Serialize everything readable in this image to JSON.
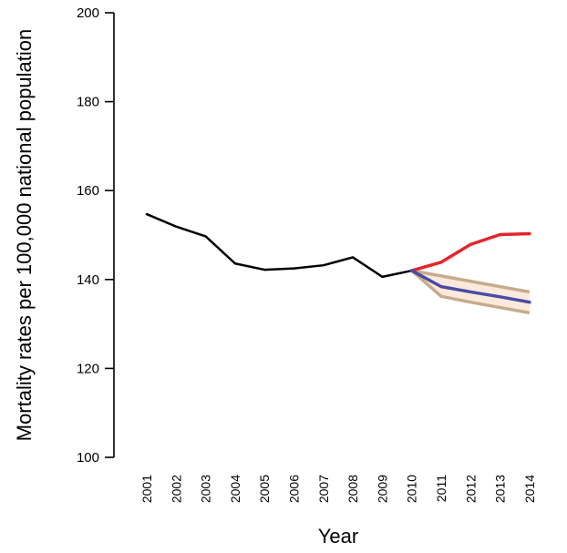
{
  "chart_data": {
    "type": "line",
    "title": "",
    "xlabel": "Year",
    "ylabel": "Mortality rates per 100,000 national population",
    "ylim": [
      100,
      200
    ],
    "yticks": [
      100,
      120,
      140,
      160,
      180,
      200
    ],
    "x": [
      "2001",
      "2002",
      "2003",
      "2004",
      "2005",
      "2006",
      "2007",
      "2008",
      "2009",
      "2010",
      "2011",
      "2012",
      "2013",
      "2014"
    ],
    "grid": false,
    "legend": "none",
    "band": {
      "x": [
        "2010",
        "2011",
        "2012",
        "2013",
        "2014"
      ],
      "upper": [
        142.0,
        140.8,
        139.6,
        138.4,
        137.2
      ],
      "lower": [
        142.0,
        136.2,
        134.9,
        133.7,
        132.5
      ],
      "fill_color": "#fbeadb",
      "edge_color": "#c8ab8c"
    },
    "series": [
      {
        "color": "#000000",
        "x": [
          "2001",
          "2002",
          "2003",
          "2004",
          "2005",
          "2006",
          "2007",
          "2008",
          "2009",
          "2010"
        ],
        "values": [
          154.7,
          151.9,
          149.7,
          143.6,
          142.2,
          142.5,
          143.2,
          145.0,
          140.6,
          142.0
        ]
      },
      {
        "color": "#e3262b",
        "x": [
          "2010",
          "2011",
          "2012",
          "2013",
          "2014"
        ],
        "values": [
          142.0,
          143.9,
          147.9,
          150.1,
          150.3
        ]
      },
      {
        "color": "#4a4ba6",
        "x": [
          "2010",
          "2011",
          "2012",
          "2013",
          "2014"
        ],
        "values": [
          142.0,
          138.4,
          137.2,
          136.1,
          134.9
        ]
      }
    ]
  }
}
